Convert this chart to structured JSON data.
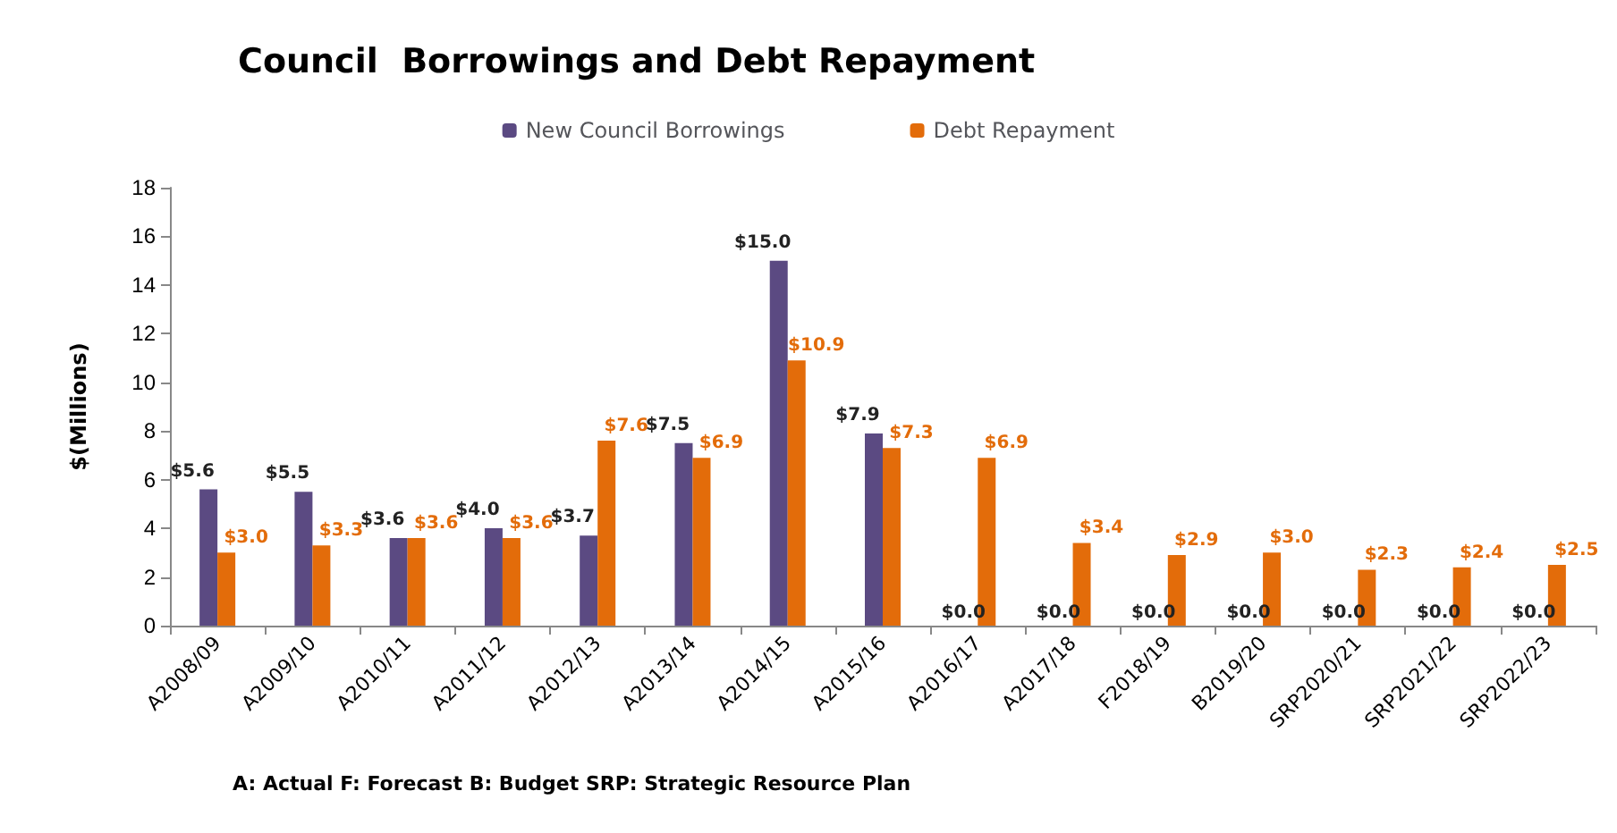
{
  "chart_data": {
    "type": "bar",
    "title": "Council  Borrowings and Debt Repayment",
    "ylabel": "$(Millions)",
    "categories": [
      "A2008/09",
      "A2009/10",
      "A2010/11",
      "A2011/12",
      "A2012/13",
      "A2013/14",
      "A2014/15",
      "A2015/16",
      "A2016/17",
      "A2017/18",
      "F2018/19",
      "B2019/20",
      "SRP2020/21",
      "SRP2021/22",
      "SRP2022/23"
    ],
    "series": [
      {
        "name": "New Council Borrowings",
        "color": "#5b4a82",
        "values": [
          5.6,
          5.5,
          3.6,
          4.0,
          3.7,
          7.5,
          15.0,
          7.9,
          0.0,
          0.0,
          0.0,
          0.0,
          0.0,
          0.0,
          0.0
        ],
        "value_labels": [
          "$5.6",
          "$5.5",
          "$3.6",
          "$4.0",
          "$3.7",
          "$7.5",
          "$15.0",
          "$7.9",
          "$0.0",
          "$0.0",
          "$0.0",
          "$0.0",
          "$0.0",
          "$0.0",
          "$0.0"
        ]
      },
      {
        "name": "Debt Repayment",
        "color": "#e36c0a",
        "values": [
          3.0,
          3.3,
          3.6,
          3.6,
          7.6,
          6.9,
          10.9,
          7.3,
          6.9,
          3.4,
          2.9,
          3.0,
          2.3,
          2.4,
          2.5
        ],
        "value_labels": [
          "$3.0",
          "$3.3",
          "$3.6",
          "$3.6",
          "$7.6",
          "$6.9",
          "$10.9",
          "$7.3",
          "$6.9",
          "$3.4",
          "$2.9",
          "$3.0",
          "$2.3",
          "$2.4",
          "$2.5"
        ]
      }
    ],
    "ylim": [
      0,
      18
    ],
    "yticks": [
      0,
      2,
      4,
      6,
      8,
      10,
      12,
      14,
      16,
      18
    ],
    "grid": false,
    "legend": "top",
    "annotations": [
      "A: Actual F: Forecast B: Budget SRP: Strategic Resource Plan"
    ]
  }
}
